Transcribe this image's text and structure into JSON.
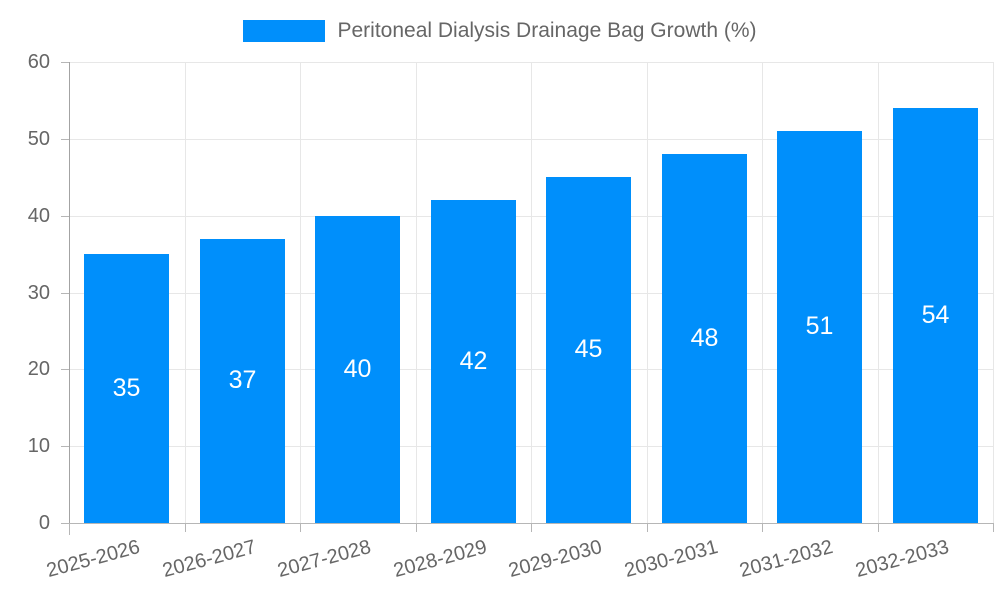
{
  "chart_data": {
    "type": "bar",
    "title": "Peritoneal Dialysis Drainage Bag Growth (%)",
    "categories": [
      "2025-2026",
      "2026-2027",
      "2027-2028",
      "2028-2029",
      "2029-2030",
      "2030-2031",
      "2031-2032",
      "2032-2033"
    ],
    "values": [
      35,
      37,
      40,
      42,
      45,
      48,
      51,
      54
    ],
    "xlabel": "",
    "ylabel": "",
    "ylim": [
      0,
      60
    ],
    "y_ticks": [
      0,
      10,
      20,
      30,
      40,
      50,
      60
    ],
    "grid": "on",
    "legend_position": "top-center",
    "colors": {
      "bar": "#008FFB",
      "axis_label": "#666666",
      "value_label": "#ffffff",
      "gridline": "#e7e7e7",
      "axis_line": "#b6b6b6",
      "background": "#ffffff"
    }
  }
}
